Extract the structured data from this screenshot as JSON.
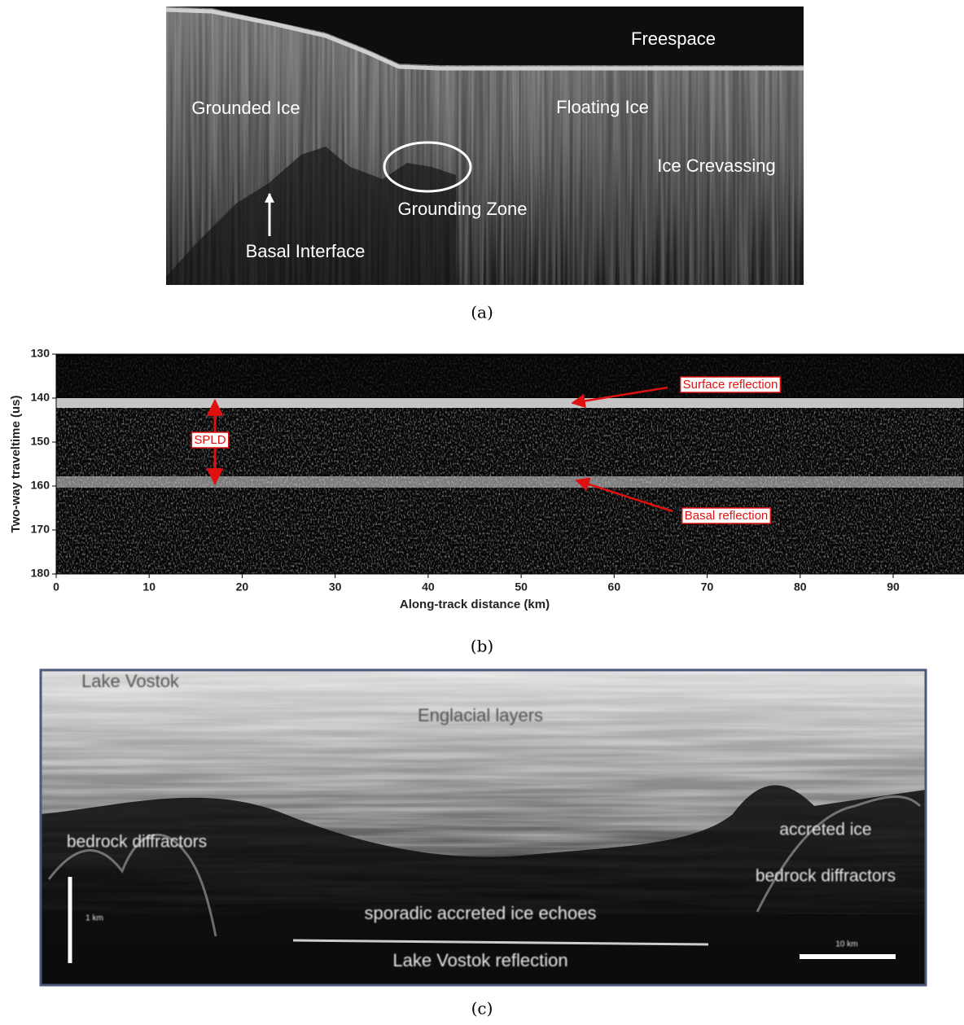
{
  "panels": [
    {
      "caption": "(a)",
      "labels": [
        "Freespace",
        "Grounded Ice",
        "Floating Ice",
        "Ice Crevassing",
        "Grounding Zone",
        "Basal Interface"
      ]
    },
    {
      "caption": "(b)",
      "y_label": "Two-way traveltime (us)",
      "x_label": "Along-track distance (km)",
      "yticks": [
        130,
        140,
        150,
        160,
        170,
        180
      ],
      "xticks": [
        0,
        10,
        20,
        30,
        40,
        50,
        60,
        70,
        80,
        90
      ],
      "annotations": [
        "Surface reflection",
        "Basal reflection",
        "SPLD"
      ]
    },
    {
      "caption": "(c)",
      "labels": [
        "Lake Vostok",
        "Englacial layers",
        "bedrock diffractors",
        "accreted ice",
        "bedrock diffractors",
        "sporadic accreted ice echoes",
        "Lake Vostok reflection",
        "1 km",
        "10 km"
      ]
    }
  ]
}
